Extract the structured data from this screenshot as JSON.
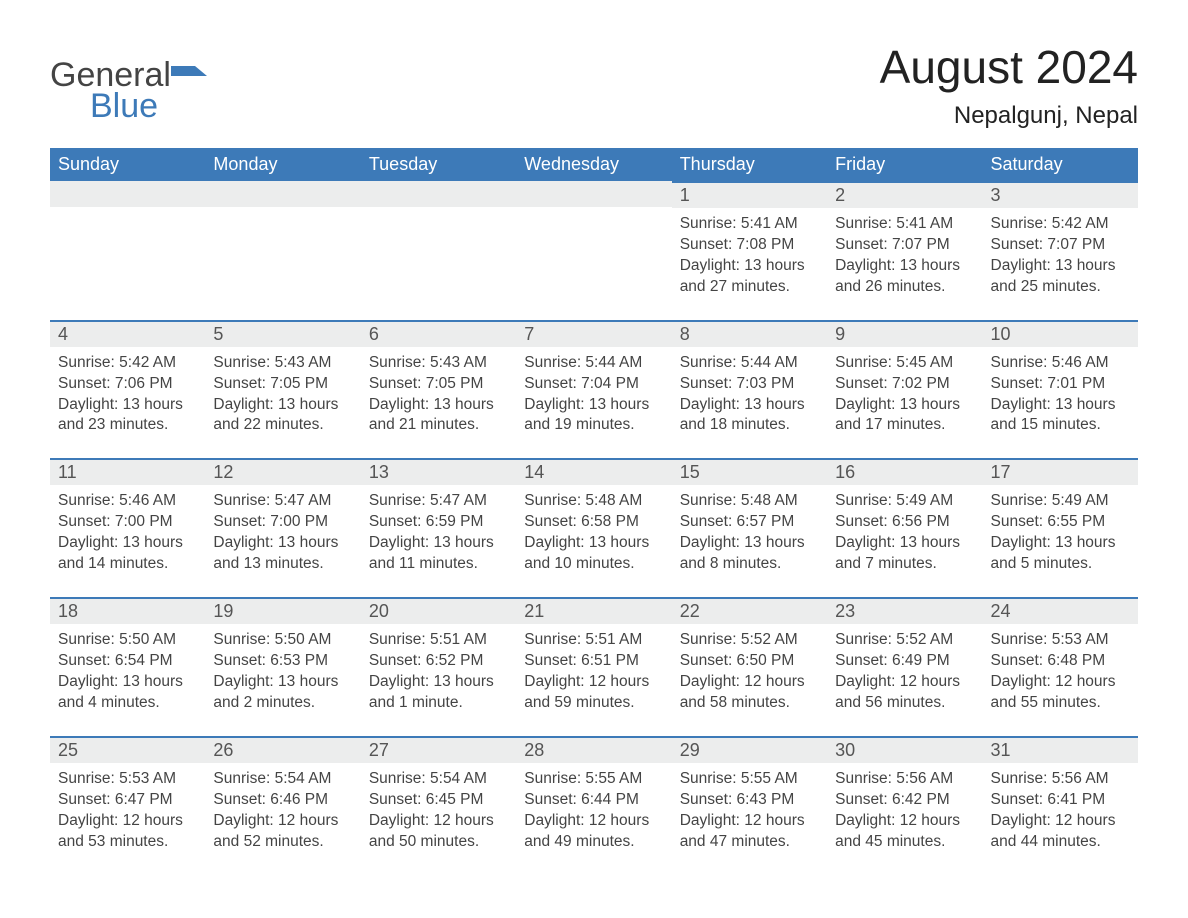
{
  "brand": {
    "general": "General",
    "blue": "Blue"
  },
  "title": "August 2024",
  "location": "Nepalgunj, Nepal",
  "dayHeaders": [
    "Sunday",
    "Monday",
    "Tuesday",
    "Wednesday",
    "Thursday",
    "Friday",
    "Saturday"
  ],
  "colors": {
    "header_bg": "#3d7ab8",
    "header_text": "#ffffff",
    "daynum_bg": "#eceded",
    "daynum_border": "#3d7ab8",
    "body_bg": "#ffffff",
    "text": "#444444"
  },
  "typography": {
    "month_title_pt": 35,
    "location_pt": 18,
    "day_header_pt": 14,
    "daynum_pt": 14,
    "detail_pt": 12
  },
  "layout": {
    "columns": 7,
    "rows": 5,
    "start_day_index": 4
  },
  "weeks": [
    [
      null,
      null,
      null,
      null,
      {
        "n": "1",
        "sunrise": "Sunrise: 5:41 AM",
        "sunset": "Sunset: 7:08 PM",
        "daylight": "Daylight: 13 hours and 27 minutes."
      },
      {
        "n": "2",
        "sunrise": "Sunrise: 5:41 AM",
        "sunset": "Sunset: 7:07 PM",
        "daylight": "Daylight: 13 hours and 26 minutes."
      },
      {
        "n": "3",
        "sunrise": "Sunrise: 5:42 AM",
        "sunset": "Sunset: 7:07 PM",
        "daylight": "Daylight: 13 hours and 25 minutes."
      }
    ],
    [
      {
        "n": "4",
        "sunrise": "Sunrise: 5:42 AM",
        "sunset": "Sunset: 7:06 PM",
        "daylight": "Daylight: 13 hours and 23 minutes."
      },
      {
        "n": "5",
        "sunrise": "Sunrise: 5:43 AM",
        "sunset": "Sunset: 7:05 PM",
        "daylight": "Daylight: 13 hours and 22 minutes."
      },
      {
        "n": "6",
        "sunrise": "Sunrise: 5:43 AM",
        "sunset": "Sunset: 7:05 PM",
        "daylight": "Daylight: 13 hours and 21 minutes."
      },
      {
        "n": "7",
        "sunrise": "Sunrise: 5:44 AM",
        "sunset": "Sunset: 7:04 PM",
        "daylight": "Daylight: 13 hours and 19 minutes."
      },
      {
        "n": "8",
        "sunrise": "Sunrise: 5:44 AM",
        "sunset": "Sunset: 7:03 PM",
        "daylight": "Daylight: 13 hours and 18 minutes."
      },
      {
        "n": "9",
        "sunrise": "Sunrise: 5:45 AM",
        "sunset": "Sunset: 7:02 PM",
        "daylight": "Daylight: 13 hours and 17 minutes."
      },
      {
        "n": "10",
        "sunrise": "Sunrise: 5:46 AM",
        "sunset": "Sunset: 7:01 PM",
        "daylight": "Daylight: 13 hours and 15 minutes."
      }
    ],
    [
      {
        "n": "11",
        "sunrise": "Sunrise: 5:46 AM",
        "sunset": "Sunset: 7:00 PM",
        "daylight": "Daylight: 13 hours and 14 minutes."
      },
      {
        "n": "12",
        "sunrise": "Sunrise: 5:47 AM",
        "sunset": "Sunset: 7:00 PM",
        "daylight": "Daylight: 13 hours and 13 minutes."
      },
      {
        "n": "13",
        "sunrise": "Sunrise: 5:47 AM",
        "sunset": "Sunset: 6:59 PM",
        "daylight": "Daylight: 13 hours and 11 minutes."
      },
      {
        "n": "14",
        "sunrise": "Sunrise: 5:48 AM",
        "sunset": "Sunset: 6:58 PM",
        "daylight": "Daylight: 13 hours and 10 minutes."
      },
      {
        "n": "15",
        "sunrise": "Sunrise: 5:48 AM",
        "sunset": "Sunset: 6:57 PM",
        "daylight": "Daylight: 13 hours and 8 minutes."
      },
      {
        "n": "16",
        "sunrise": "Sunrise: 5:49 AM",
        "sunset": "Sunset: 6:56 PM",
        "daylight": "Daylight: 13 hours and 7 minutes."
      },
      {
        "n": "17",
        "sunrise": "Sunrise: 5:49 AM",
        "sunset": "Sunset: 6:55 PM",
        "daylight": "Daylight: 13 hours and 5 minutes."
      }
    ],
    [
      {
        "n": "18",
        "sunrise": "Sunrise: 5:50 AM",
        "sunset": "Sunset: 6:54 PM",
        "daylight": "Daylight: 13 hours and 4 minutes."
      },
      {
        "n": "19",
        "sunrise": "Sunrise: 5:50 AM",
        "sunset": "Sunset: 6:53 PM",
        "daylight": "Daylight: 13 hours and 2 minutes."
      },
      {
        "n": "20",
        "sunrise": "Sunrise: 5:51 AM",
        "sunset": "Sunset: 6:52 PM",
        "daylight": "Daylight: 13 hours and 1 minute."
      },
      {
        "n": "21",
        "sunrise": "Sunrise: 5:51 AM",
        "sunset": "Sunset: 6:51 PM",
        "daylight": "Daylight: 12 hours and 59 minutes."
      },
      {
        "n": "22",
        "sunrise": "Sunrise: 5:52 AM",
        "sunset": "Sunset: 6:50 PM",
        "daylight": "Daylight: 12 hours and 58 minutes."
      },
      {
        "n": "23",
        "sunrise": "Sunrise: 5:52 AM",
        "sunset": "Sunset: 6:49 PM",
        "daylight": "Daylight: 12 hours and 56 minutes."
      },
      {
        "n": "24",
        "sunrise": "Sunrise: 5:53 AM",
        "sunset": "Sunset: 6:48 PM",
        "daylight": "Daylight: 12 hours and 55 minutes."
      }
    ],
    [
      {
        "n": "25",
        "sunrise": "Sunrise: 5:53 AM",
        "sunset": "Sunset: 6:47 PM",
        "daylight": "Daylight: 12 hours and 53 minutes."
      },
      {
        "n": "26",
        "sunrise": "Sunrise: 5:54 AM",
        "sunset": "Sunset: 6:46 PM",
        "daylight": "Daylight: 12 hours and 52 minutes."
      },
      {
        "n": "27",
        "sunrise": "Sunrise: 5:54 AM",
        "sunset": "Sunset: 6:45 PM",
        "daylight": "Daylight: 12 hours and 50 minutes."
      },
      {
        "n": "28",
        "sunrise": "Sunrise: 5:55 AM",
        "sunset": "Sunset: 6:44 PM",
        "daylight": "Daylight: 12 hours and 49 minutes."
      },
      {
        "n": "29",
        "sunrise": "Sunrise: 5:55 AM",
        "sunset": "Sunset: 6:43 PM",
        "daylight": "Daylight: 12 hours and 47 minutes."
      },
      {
        "n": "30",
        "sunrise": "Sunrise: 5:56 AM",
        "sunset": "Sunset: 6:42 PM",
        "daylight": "Daylight: 12 hours and 45 minutes."
      },
      {
        "n": "31",
        "sunrise": "Sunrise: 5:56 AM",
        "sunset": "Sunset: 6:41 PM",
        "daylight": "Daylight: 12 hours and 44 minutes."
      }
    ]
  ]
}
